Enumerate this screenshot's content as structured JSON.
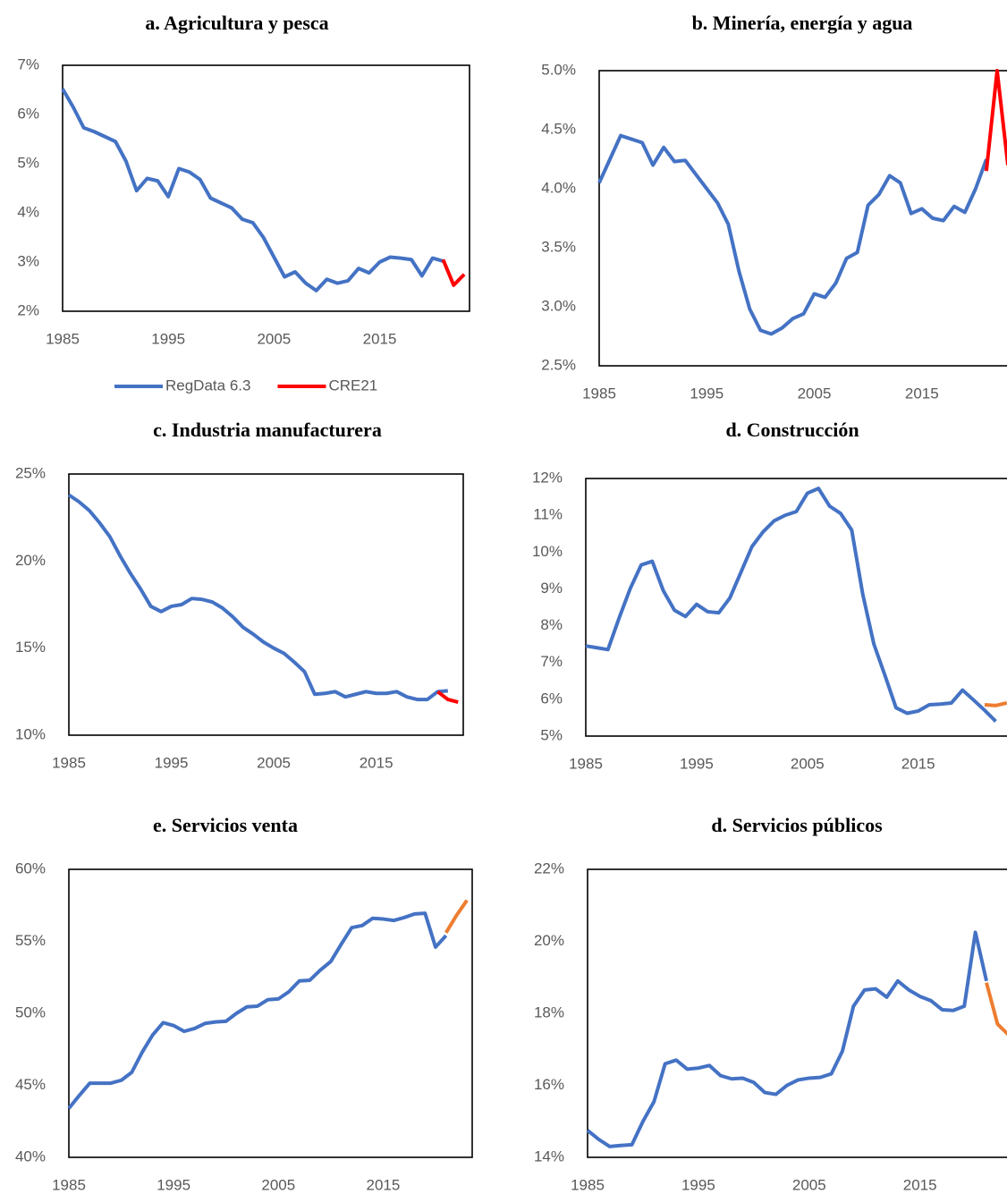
{
  "chart_data": [
    {
      "type": "line",
      "title": "a. Agricultura y pesca",
      "xlim": [
        1985,
        2023.5
      ],
      "xticks": [
        1985,
        1995,
        2005,
        2015
      ],
      "ylim": [
        2,
        7
      ],
      "yticks": [
        {
          "value": 2,
          "label": "2%"
        },
        {
          "value": 3,
          "label": "3%"
        },
        {
          "value": 4,
          "label": "4%"
        },
        {
          "value": 5,
          "label": "5%"
        },
        {
          "value": 6,
          "label": "6%"
        },
        {
          "value": 7,
          "label": "7%"
        }
      ],
      "legend": "bottom",
      "series": [
        {
          "name": "RegData 6.3",
          "color": "#4472c4",
          "x": [
            1985,
            1986,
            1987,
            1988,
            1989,
            1990,
            1991,
            1992,
            1993,
            1994,
            1995,
            1996,
            1997,
            1998,
            1999,
            2000,
            2001,
            2002,
            2003,
            2004,
            2005,
            2006,
            2007,
            2008,
            2009,
            2010,
            2011,
            2012,
            2013,
            2014,
            2015,
            2016,
            2017,
            2018,
            2019,
            2020,
            2021
          ],
          "values": [
            6.52,
            6.15,
            5.73,
            5.65,
            5.55,
            5.45,
            5.05,
            4.45,
            4.7,
            4.65,
            4.33,
            4.9,
            4.83,
            4.68,
            4.3,
            4.2,
            4.1,
            3.87,
            3.8,
            3.5,
            3.1,
            2.7,
            2.8,
            2.57,
            2.42,
            2.65,
            2.57,
            2.62,
            2.87,
            2.78,
            3.0,
            3.1,
            3.08,
            3.05,
            2.72,
            3.08,
            3.02
          ]
        },
        {
          "name": "CRE21",
          "color": "#ff0000",
          "x": [
            2021,
            2022,
            2023
          ],
          "values": [
            3.05,
            2.53,
            2.75
          ]
        }
      ]
    },
    {
      "type": "line",
      "title": "b. Minería, energía y agua",
      "xlim": [
        1985,
        2023.5
      ],
      "xticks": [
        1985,
        1995,
        2005,
        2015
      ],
      "ylim": [
        2.5,
        5
      ],
      "yticks": [
        {
          "value": 2.5,
          "label": "2.5%"
        },
        {
          "value": 3,
          "label": "3.0%"
        },
        {
          "value": 3.5,
          "label": "3.5%"
        },
        {
          "value": 4,
          "label": "4.0%"
        },
        {
          "value": 4.5,
          "label": "4.5%"
        },
        {
          "value": 5,
          "label": "5.0%"
        }
      ],
      "series": [
        {
          "color": "#4472c4",
          "x": [
            1985,
            1986,
            1987,
            1988,
            1989,
            1990,
            1991,
            1992,
            1993,
            1994,
            1995,
            1996,
            1997,
            1998,
            1999,
            2000,
            2001,
            2002,
            2003,
            2004,
            2005,
            2006,
            2007,
            2008,
            2009,
            2010,
            2011,
            2012,
            2013,
            2014,
            2015,
            2016,
            2017,
            2018,
            2019,
            2020,
            2021
          ],
          "values": [
            4.05,
            4.25,
            4.45,
            4.42,
            4.39,
            4.2,
            4.35,
            4.23,
            4.24,
            4.12,
            4.0,
            3.88,
            3.7,
            3.3,
            2.98,
            2.8,
            2.77,
            2.82,
            2.9,
            2.94,
            3.11,
            3.08,
            3.2,
            3.41,
            3.46,
            3.86,
            3.95,
            4.11,
            4.05,
            3.79,
            3.83,
            3.75,
            3.73,
            3.85,
            3.8,
            4.0,
            4.25
          ]
        },
        {
          "color": "#ff0000",
          "x": [
            2021,
            2022,
            2023
          ],
          "values": [
            4.15,
            5.0,
            4.2
          ]
        }
      ]
    },
    {
      "type": "line",
      "title": "c. Industria manufacturera",
      "xlim": [
        1985,
        2023.5
      ],
      "xticks": [
        1985,
        1995,
        2005,
        2015
      ],
      "ylim": [
        10,
        25
      ],
      "yticks": [
        {
          "value": 10,
          "label": "10%"
        },
        {
          "value": 15,
          "label": "15%"
        },
        {
          "value": 20,
          "label": "20%"
        },
        {
          "value": 25,
          "label": "25%"
        }
      ],
      "series": [
        {
          "color": "#4472c4",
          "x": [
            1985,
            1986,
            1987,
            1988,
            1989,
            1990,
            1991,
            1992,
            1993,
            1994,
            1995,
            1996,
            1997,
            1998,
            1999,
            2000,
            2001,
            2002,
            2003,
            2004,
            2005,
            2006,
            2007,
            2008,
            2009,
            2010,
            2011,
            2012,
            2013,
            2014,
            2015,
            2016,
            2017,
            2018,
            2019,
            2020,
            2021,
            2022
          ],
          "values": [
            23.8,
            23.4,
            22.9,
            22.2,
            21.4,
            20.3,
            19.3,
            18.4,
            17.4,
            17.1,
            17.4,
            17.5,
            17.85,
            17.8,
            17.65,
            17.3,
            16.8,
            16.2,
            15.8,
            15.35,
            15.0,
            14.7,
            14.2,
            13.65,
            12.35,
            12.4,
            12.5,
            12.2,
            12.35,
            12.5,
            12.4,
            12.4,
            12.5,
            12.2,
            12.05,
            12.05,
            12.5,
            12.55
          ]
        },
        {
          "color": "#ff0000",
          "x": [
            2021,
            2022,
            2023
          ],
          "values": [
            12.5,
            12.05,
            11.9
          ]
        }
      ]
    },
    {
      "type": "line",
      "title": "d. Construcción",
      "xlim": [
        1985,
        2023.5
      ],
      "xticks": [
        1985,
        1995,
        2005,
        2015
      ],
      "ylim": [
        5,
        12
      ],
      "yticks": [
        {
          "value": 5,
          "label": "5%"
        },
        {
          "value": 6,
          "label": "6%"
        },
        {
          "value": 7,
          "label": "7%"
        },
        {
          "value": 8,
          "label": "8%"
        },
        {
          "value": 9,
          "label": "9%"
        },
        {
          "value": 10,
          "label": "10%"
        },
        {
          "value": 11,
          "label": "11%"
        },
        {
          "value": 12,
          "label": "12%"
        }
      ],
      "series": [
        {
          "color": "#4472c4",
          "x": [
            1985,
            1986,
            1987,
            1988,
            1989,
            1990,
            1991,
            1992,
            1993,
            1994,
            1995,
            1996,
            1997,
            1998,
            1999,
            2000,
            2001,
            2002,
            2003,
            2004,
            2005,
            2006,
            2007,
            2008,
            2009,
            2010,
            2011,
            2012,
            2013,
            2014,
            2015,
            2016,
            2017,
            2018,
            2019,
            2020,
            2021,
            2022
          ],
          "values": [
            7.45,
            7.4,
            7.35,
            8.2,
            9.0,
            9.65,
            9.75,
            8.95,
            8.42,
            8.25,
            8.58,
            8.38,
            8.35,
            8.75,
            9.45,
            10.15,
            10.55,
            10.85,
            11.0,
            11.1,
            11.6,
            11.73,
            11.25,
            11.05,
            10.6,
            8.85,
            7.5,
            6.65,
            5.77,
            5.62,
            5.68,
            5.85,
            5.87,
            5.9,
            6.25,
            5.98,
            5.7,
            5.4
          ]
        },
        {
          "color": "#ed7d31",
          "x": [
            2021,
            2022,
            2023
          ],
          "values": [
            5.85,
            5.83,
            5.9
          ]
        }
      ]
    },
    {
      "type": "line",
      "title": "e. Servicios venta",
      "xlim": [
        1985,
        2023.5
      ],
      "xticks": [
        1985,
        1995,
        2005,
        2015
      ],
      "ylim": [
        40,
        60
      ],
      "yticks": [
        {
          "value": 40,
          "label": "40%"
        },
        {
          "value": 45,
          "label": "45%"
        },
        {
          "value": 50,
          "label": "50%"
        },
        {
          "value": 55,
          "label": "55%"
        },
        {
          "value": 60,
          "label": "60%"
        }
      ],
      "series": [
        {
          "color": "#4472c4",
          "x": [
            1985,
            1986,
            1987,
            1988,
            1989,
            1990,
            1991,
            1992,
            1993,
            1994,
            1995,
            1996,
            1997,
            1998,
            1999,
            2000,
            2001,
            2002,
            2003,
            2004,
            2005,
            2006,
            2007,
            2008,
            2009,
            2010,
            2011,
            2012,
            2013,
            2014,
            2015,
            2016,
            2017,
            2018,
            2019,
            2020,
            2021
          ],
          "values": [
            43.4,
            44.3,
            45.15,
            45.15,
            45.15,
            45.35,
            45.9,
            47.3,
            48.5,
            49.35,
            49.15,
            48.75,
            48.95,
            49.3,
            49.4,
            49.45,
            50.0,
            50.45,
            50.5,
            50.95,
            51.0,
            51.5,
            52.25,
            52.3,
            53.0,
            53.6,
            54.8,
            55.95,
            56.1,
            56.6,
            56.55,
            56.45,
            56.65,
            56.9,
            56.95,
            54.6,
            55.4
          ]
        },
        {
          "color": "#ed7d31",
          "x": [
            2021,
            2022,
            2023
          ],
          "values": [
            55.6,
            56.8,
            57.85
          ]
        }
      ]
    },
    {
      "type": "line",
      "title": "d. Servicios públicos",
      "xlim": [
        1985,
        2023.5
      ],
      "xticks": [
        1985,
        1995,
        2005,
        2015
      ],
      "ylim": [
        14,
        22
      ],
      "yticks": [
        {
          "value": 14,
          "label": "14%"
        },
        {
          "value": 16,
          "label": "16%"
        },
        {
          "value": 18,
          "label": "18%"
        },
        {
          "value": 20,
          "label": "20%"
        },
        {
          "value": 22,
          "label": "22%"
        }
      ],
      "series": [
        {
          "color": "#4472c4",
          "x": [
            1985,
            1986,
            1987,
            1988,
            1989,
            1990,
            1991,
            1992,
            1993,
            1994,
            1995,
            1996,
            1997,
            1998,
            1999,
            2000,
            2001,
            2002,
            2003,
            2004,
            2005,
            2006,
            2007,
            2008,
            2009,
            2010,
            2011,
            2012,
            2013,
            2014,
            2015,
            2016,
            2017,
            2018,
            2019,
            2020,
            2021
          ],
          "values": [
            14.75,
            14.5,
            14.3,
            14.33,
            14.35,
            15.0,
            15.55,
            16.6,
            16.7,
            16.45,
            16.48,
            16.55,
            16.27,
            16.18,
            16.2,
            16.08,
            15.8,
            15.75,
            16.0,
            16.15,
            16.2,
            16.22,
            16.32,
            16.95,
            18.2,
            18.65,
            18.68,
            18.45,
            18.9,
            18.65,
            18.47,
            18.35,
            18.1,
            18.08,
            18.2,
            20.25,
            18.9
          ]
        },
        {
          "color": "#ed7d31",
          "x": [
            2021,
            2022,
            2023
          ],
          "values": [
            18.85,
            17.7,
            17.4
          ]
        }
      ]
    }
  ]
}
